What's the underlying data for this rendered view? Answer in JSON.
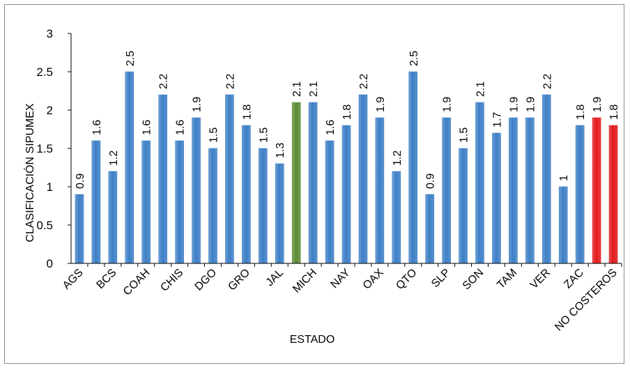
{
  "chart_data": {
    "type": "bar",
    "title": "",
    "xlabel": "ESTADO",
    "ylabel": "CLASIFICACIÓN SIPUMEX",
    "ylim": [
      0,
      3
    ],
    "yticks": [
      "0",
      "0.5",
      "1",
      "1.5",
      "2",
      "2.5",
      "3"
    ],
    "grid": false,
    "legend": "none",
    "categories": [
      "AGS",
      "",
      "BCS",
      "",
      "COAH",
      "",
      "CHIS",
      "",
      "DGO",
      "",
      "GRO",
      "",
      "JAL",
      "",
      "MICH",
      "",
      "NAY",
      "",
      "OAX",
      "",
      "QTO",
      "",
      "SLP",
      "",
      "SON",
      "",
      "TAM",
      "",
      "VER",
      "",
      "ZAC",
      "",
      "NO COSTEROS"
    ],
    "values": [
      0.9,
      1.6,
      1.2,
      2.5,
      1.6,
      2.2,
      1.6,
      1.9,
      1.5,
      2.2,
      1.8,
      1.5,
      1.3,
      2.1,
      2.1,
      1.6,
      1.8,
      2.2,
      1.9,
      1.2,
      2.5,
      0.9,
      1.9,
      1.5,
      2.1,
      1.7,
      1.9,
      1.9,
      2.2,
      1.0,
      1.8,
      1.9,
      1.8
    ],
    "value_labels": [
      "0.9",
      "1.6",
      "1.2",
      "2.5",
      "1.6",
      "2.2",
      "1.6",
      "1.9",
      "1.5",
      "2.2",
      "1.8",
      "1.5",
      "1.3",
      "2.1",
      "2.1",
      "1.6",
      "1.8",
      "2.2",
      "1.9",
      "1.2",
      "2.5",
      "0.9",
      "1.9",
      "1.5",
      "2.1",
      "1.7",
      "1.9",
      "1.9",
      "2.2",
      "1",
      "1.8",
      "1.9",
      "1.8"
    ],
    "bar_colors": [
      "#3d7fc6",
      "#3d7fc6",
      "#3d7fc6",
      "#3d7fc6",
      "#3d7fc6",
      "#3d7fc6",
      "#3d7fc6",
      "#3d7fc6",
      "#3d7fc6",
      "#3d7fc6",
      "#3d7fc6",
      "#3d7fc6",
      "#3d7fc6",
      "#5a8a35",
      "#3d7fc6",
      "#3d7fc6",
      "#3d7fc6",
      "#3d7fc6",
      "#3d7fc6",
      "#3d7fc6",
      "#3d7fc6",
      "#3d7fc6",
      "#3d7fc6",
      "#3d7fc6",
      "#3d7fc6",
      "#3d7fc6",
      "#3d7fc6",
      "#3d7fc6",
      "#3d7fc6",
      "#3d7fc6",
      "#3d7fc6",
      "#e31a1c",
      "#e31a1c"
    ]
  }
}
